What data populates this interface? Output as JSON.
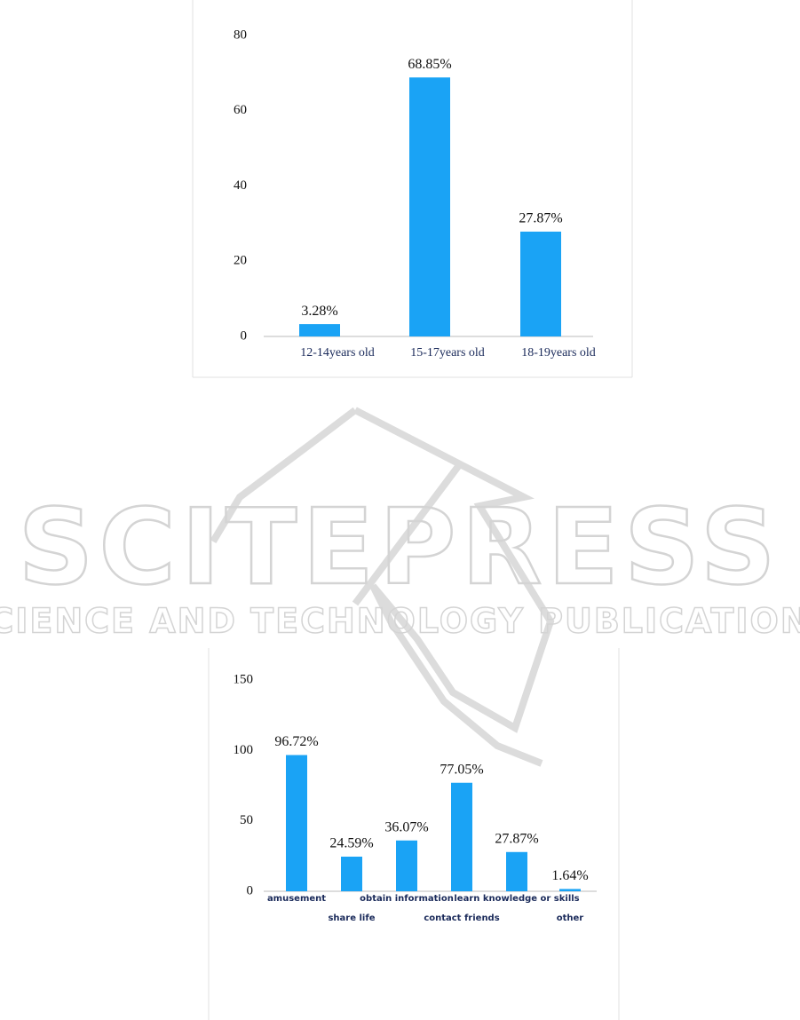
{
  "watermark": {
    "title": "SCITEPRESS",
    "subtitle": "SCIENCE AND TECHNOLOGY PUBLICATIONS"
  },
  "chart_data": [
    {
      "type": "bar",
      "categories": [
        "12-14years old",
        "15-17years old",
        "18-19years old"
      ],
      "values": [
        3.28,
        68.85,
        27.87
      ],
      "value_labels": [
        "3.28%",
        "68.85%",
        "27.87%"
      ],
      "color": "#1aa3f5",
      "ylim": [
        0,
        80
      ],
      "yticks": [
        0,
        20,
        40,
        60,
        80
      ]
    },
    {
      "type": "bar",
      "categories": [
        "amusement",
        "share life",
        "obtain information",
        "contact friends",
        "learn knowledge or skills",
        "other"
      ],
      "values": [
        96.72,
        24.59,
        36.07,
        77.05,
        27.87,
        1.64
      ],
      "value_labels": [
        "96.72%",
        "24.59%",
        "36.07%",
        "77.05%",
        "27.87%",
        "1.64%"
      ],
      "color": "#1aa3f5",
      "ylim": [
        0,
        150
      ],
      "yticks": [
        0,
        50,
        100,
        150
      ]
    }
  ]
}
